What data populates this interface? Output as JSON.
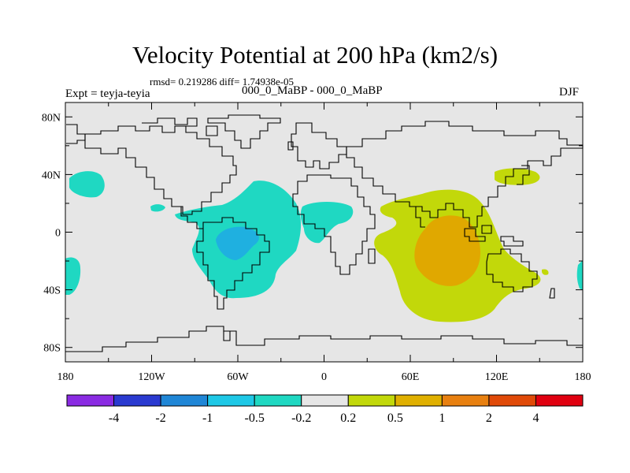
{
  "title": "Velocity Potential at 200 hPa (km2/s)",
  "stats": "rmsd= 0.219286 diff= 1.74938e-05",
  "left_label": "Expt = teyja-teyia",
  "center_label": "000_0_MaBP - 000_0_MaBP",
  "right_label": "DJF",
  "lat_ticks": [
    {
      "label": "80N",
      "value": 80
    },
    {
      "label": "40N",
      "value": 40
    },
    {
      "label": "0",
      "value": 0
    },
    {
      "label": "40S",
      "value": -40
    },
    {
      "label": "80S",
      "value": -80
    }
  ],
  "lon_ticks": [
    {
      "label": "180",
      "value": -180
    },
    {
      "label": "120W",
      "value": -120
    },
    {
      "label": "60W",
      "value": -60
    },
    {
      "label": "0",
      "value": 0
    },
    {
      "label": "60E",
      "value": 60
    },
    {
      "label": "120E",
      "value": 120
    },
    {
      "label": "180",
      "value": 180
    }
  ],
  "colorbar": {
    "colors": [
      "#8a2be2",
      "#2a3ad0",
      "#1f86d6",
      "#1ec8e6",
      "#1fd8c2",
      "#e6e6e6",
      "#c2d80a",
      "#e0b000",
      "#e88010",
      "#e04a08",
      "#e00010"
    ],
    "labels": [
      "-4",
      "-2",
      "-1",
      "-0.5",
      "-0.2",
      "0.2",
      "0.5",
      "1",
      "2",
      "4"
    ]
  },
  "colors": {
    "background": "#e6e6e6",
    "neg_low": "#1fd8c2",
    "neg_mid": "#1fb0e0",
    "pos_low": "#c2d80a",
    "pos_mid": "#e0a800",
    "coast": "#000000"
  }
}
